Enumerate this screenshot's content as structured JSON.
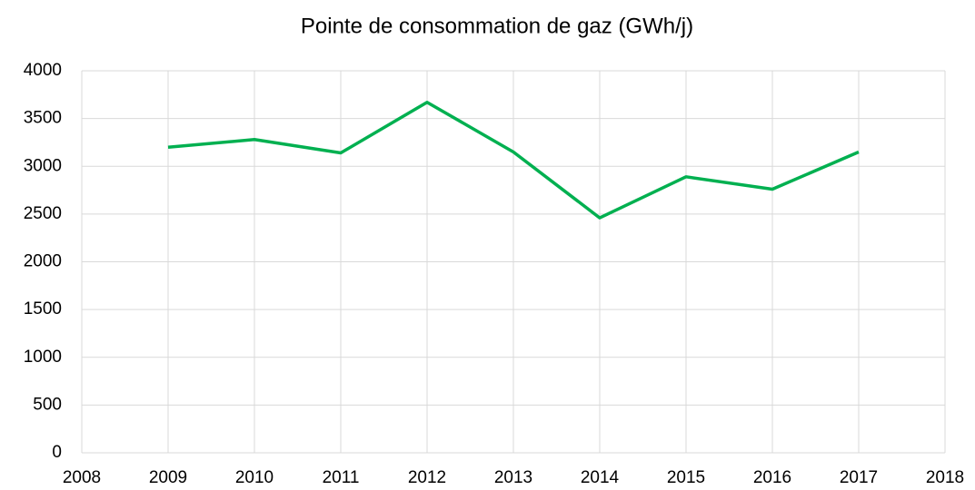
{
  "chart_data": {
    "type": "line",
    "title": "Pointe de consommation de gaz (GWh/j)",
    "x": [
      2009,
      2010,
      2011,
      2012,
      2013,
      2014,
      2015,
      2016,
      2017
    ],
    "series": [
      {
        "name": "Pointe de consommation de gaz",
        "color": "#00b050",
        "values": [
          3200,
          3280,
          3140,
          3670,
          3150,
          2460,
          2890,
          2760,
          3150
        ]
      }
    ],
    "xlim": [
      2008,
      2018
    ],
    "xticks": [
      2008,
      2009,
      2010,
      2011,
      2012,
      2013,
      2014,
      2015,
      2016,
      2017,
      2018
    ],
    "ylim": [
      0,
      4000
    ],
    "yticks": [
      0,
      500,
      1000,
      1500,
      2000,
      2500,
      3000,
      3500,
      4000
    ],
    "grid": true
  }
}
